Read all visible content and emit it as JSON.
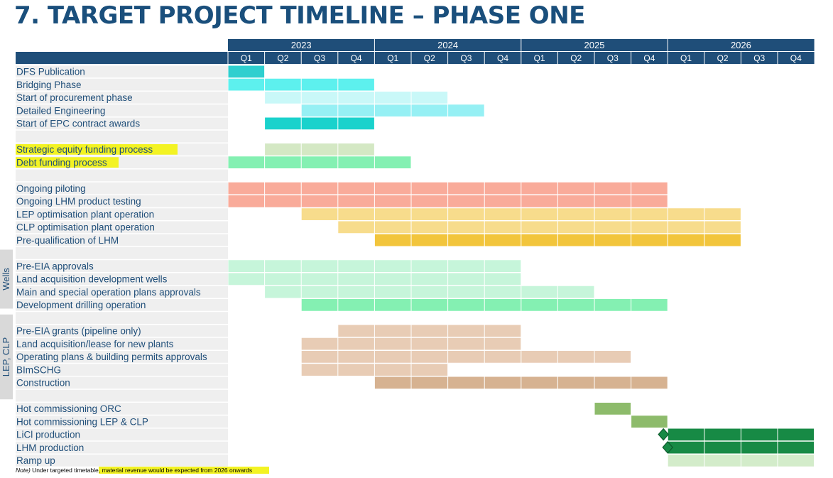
{
  "title": "7. TARGET PROJECT TIMELINE – PHASE ONE",
  "chart_data": {
    "type": "gantt",
    "years": [
      "2023",
      "2024",
      "2025",
      "2026"
    ],
    "quarters": [
      "Q1",
      "Q2",
      "Q3",
      "Q4"
    ],
    "groups": [
      {
        "label": "Wells",
        "rows": [
          17,
          20
        ]
      },
      {
        "label": "LEP, CLP",
        "rows": [
          22,
          27
        ]
      }
    ],
    "rows": [
      {
        "label": "DFS Publication",
        "start": 0,
        "end": 1,
        "color": "#2ecfcf"
      },
      {
        "label": "Bridging Phase",
        "start": 0,
        "end": 4,
        "color": "#5df0ee"
      },
      {
        "label": "Start of procurement phase",
        "start": 1,
        "end": 6,
        "color": "#c9f8f8"
      },
      {
        "label": "Detailed Engineering",
        "start": 2,
        "end": 7,
        "color": "#96f0f4"
      },
      {
        "label": "Start of EPC contract awards",
        "start": 1,
        "end": 4,
        "color": "#1ad2cc"
      },
      {
        "label": "",
        "start": null,
        "end": null
      },
      {
        "label": "Strategic equity funding process",
        "start": 1,
        "end": 4,
        "color": "#d4e8c4",
        "highlight": true
      },
      {
        "label": "Debt funding process",
        "start": 0,
        "end": 5,
        "color": "#84f0b2",
        "highlight": true
      },
      {
        "label": "",
        "start": null,
        "end": null
      },
      {
        "label": "Ongoing piloting",
        "start": 0,
        "end": 12,
        "color": "#f9ab9a"
      },
      {
        "label": "Ongoing LHM product testing",
        "start": 0,
        "end": 12,
        "color": "#f9ab9a"
      },
      {
        "label": "LEP optimisation plant operation",
        "start": 2,
        "end": 14,
        "color": "#f7dc8c"
      },
      {
        "label": "CLP optimisation plant operation",
        "start": 3,
        "end": 14,
        "color": "#f7dc8c"
      },
      {
        "label": "Pre-qualification of LHM",
        "start": 4,
        "end": 14,
        "color": "#f2c53c"
      },
      {
        "label": "",
        "start": null,
        "end": null
      },
      {
        "label": "Pre-EIA approvals",
        "start": 0,
        "end": 8,
        "color": "#c6f5da"
      },
      {
        "label": "Land acquisition development wells",
        "start": 0,
        "end": 8,
        "color": "#c6f5da"
      },
      {
        "label": "Main and special operation plans approvals",
        "start": 1,
        "end": 10,
        "color": "#c6f5da"
      },
      {
        "label": "Development drilling operation",
        "start": 2,
        "end": 12,
        "color": "#84f0b2"
      },
      {
        "label": "",
        "start": null,
        "end": null
      },
      {
        "label": "Pre-EIA grants (pipeline only)",
        "start": 3,
        "end": 8,
        "color": "#e8ccb5"
      },
      {
        "label": "Land acquisition/lease for new plants",
        "start": 2,
        "end": 8,
        "color": "#e8ccb5"
      },
      {
        "label": "Operating plans & building permits approvals",
        "start": 2,
        "end": 11,
        "color": "#e8ccb5"
      },
      {
        "label": "BImSCHG",
        "start": 2,
        "end": 6,
        "color": "#e8ccb5"
      },
      {
        "label": "Construction",
        "start": 4,
        "end": 12,
        "color": "#d6b291"
      },
      {
        "label": "",
        "start": null,
        "end": null
      },
      {
        "label": "Hot commissioning ORC",
        "start": 10,
        "end": 11,
        "color": "#8dbb6b"
      },
      {
        "label": "Hot commissioning LEP & CLP",
        "start": 11,
        "end": 12,
        "color": "#8dbb6b"
      },
      {
        "label": "LiCl production",
        "start": 12,
        "end": 16,
        "color": "#178a45",
        "milestone": true
      },
      {
        "label": "LHM production",
        "start": 12,
        "end": 16,
        "color": "#178a45",
        "milestone": true
      },
      {
        "label": "Ramp up",
        "start": 12,
        "end": 16,
        "color": "#d3ecca"
      }
    ]
  },
  "footnote": {
    "prefix": "Note)",
    "text": " Under targeted timetable",
    "highlight": ", material revenue would be expected from 2026 onwards"
  },
  "colors": {
    "header": "#1f4e79",
    "row_band": "#efefef",
    "highlight": "#f3f323",
    "group_tab": "#d9d9d9"
  }
}
